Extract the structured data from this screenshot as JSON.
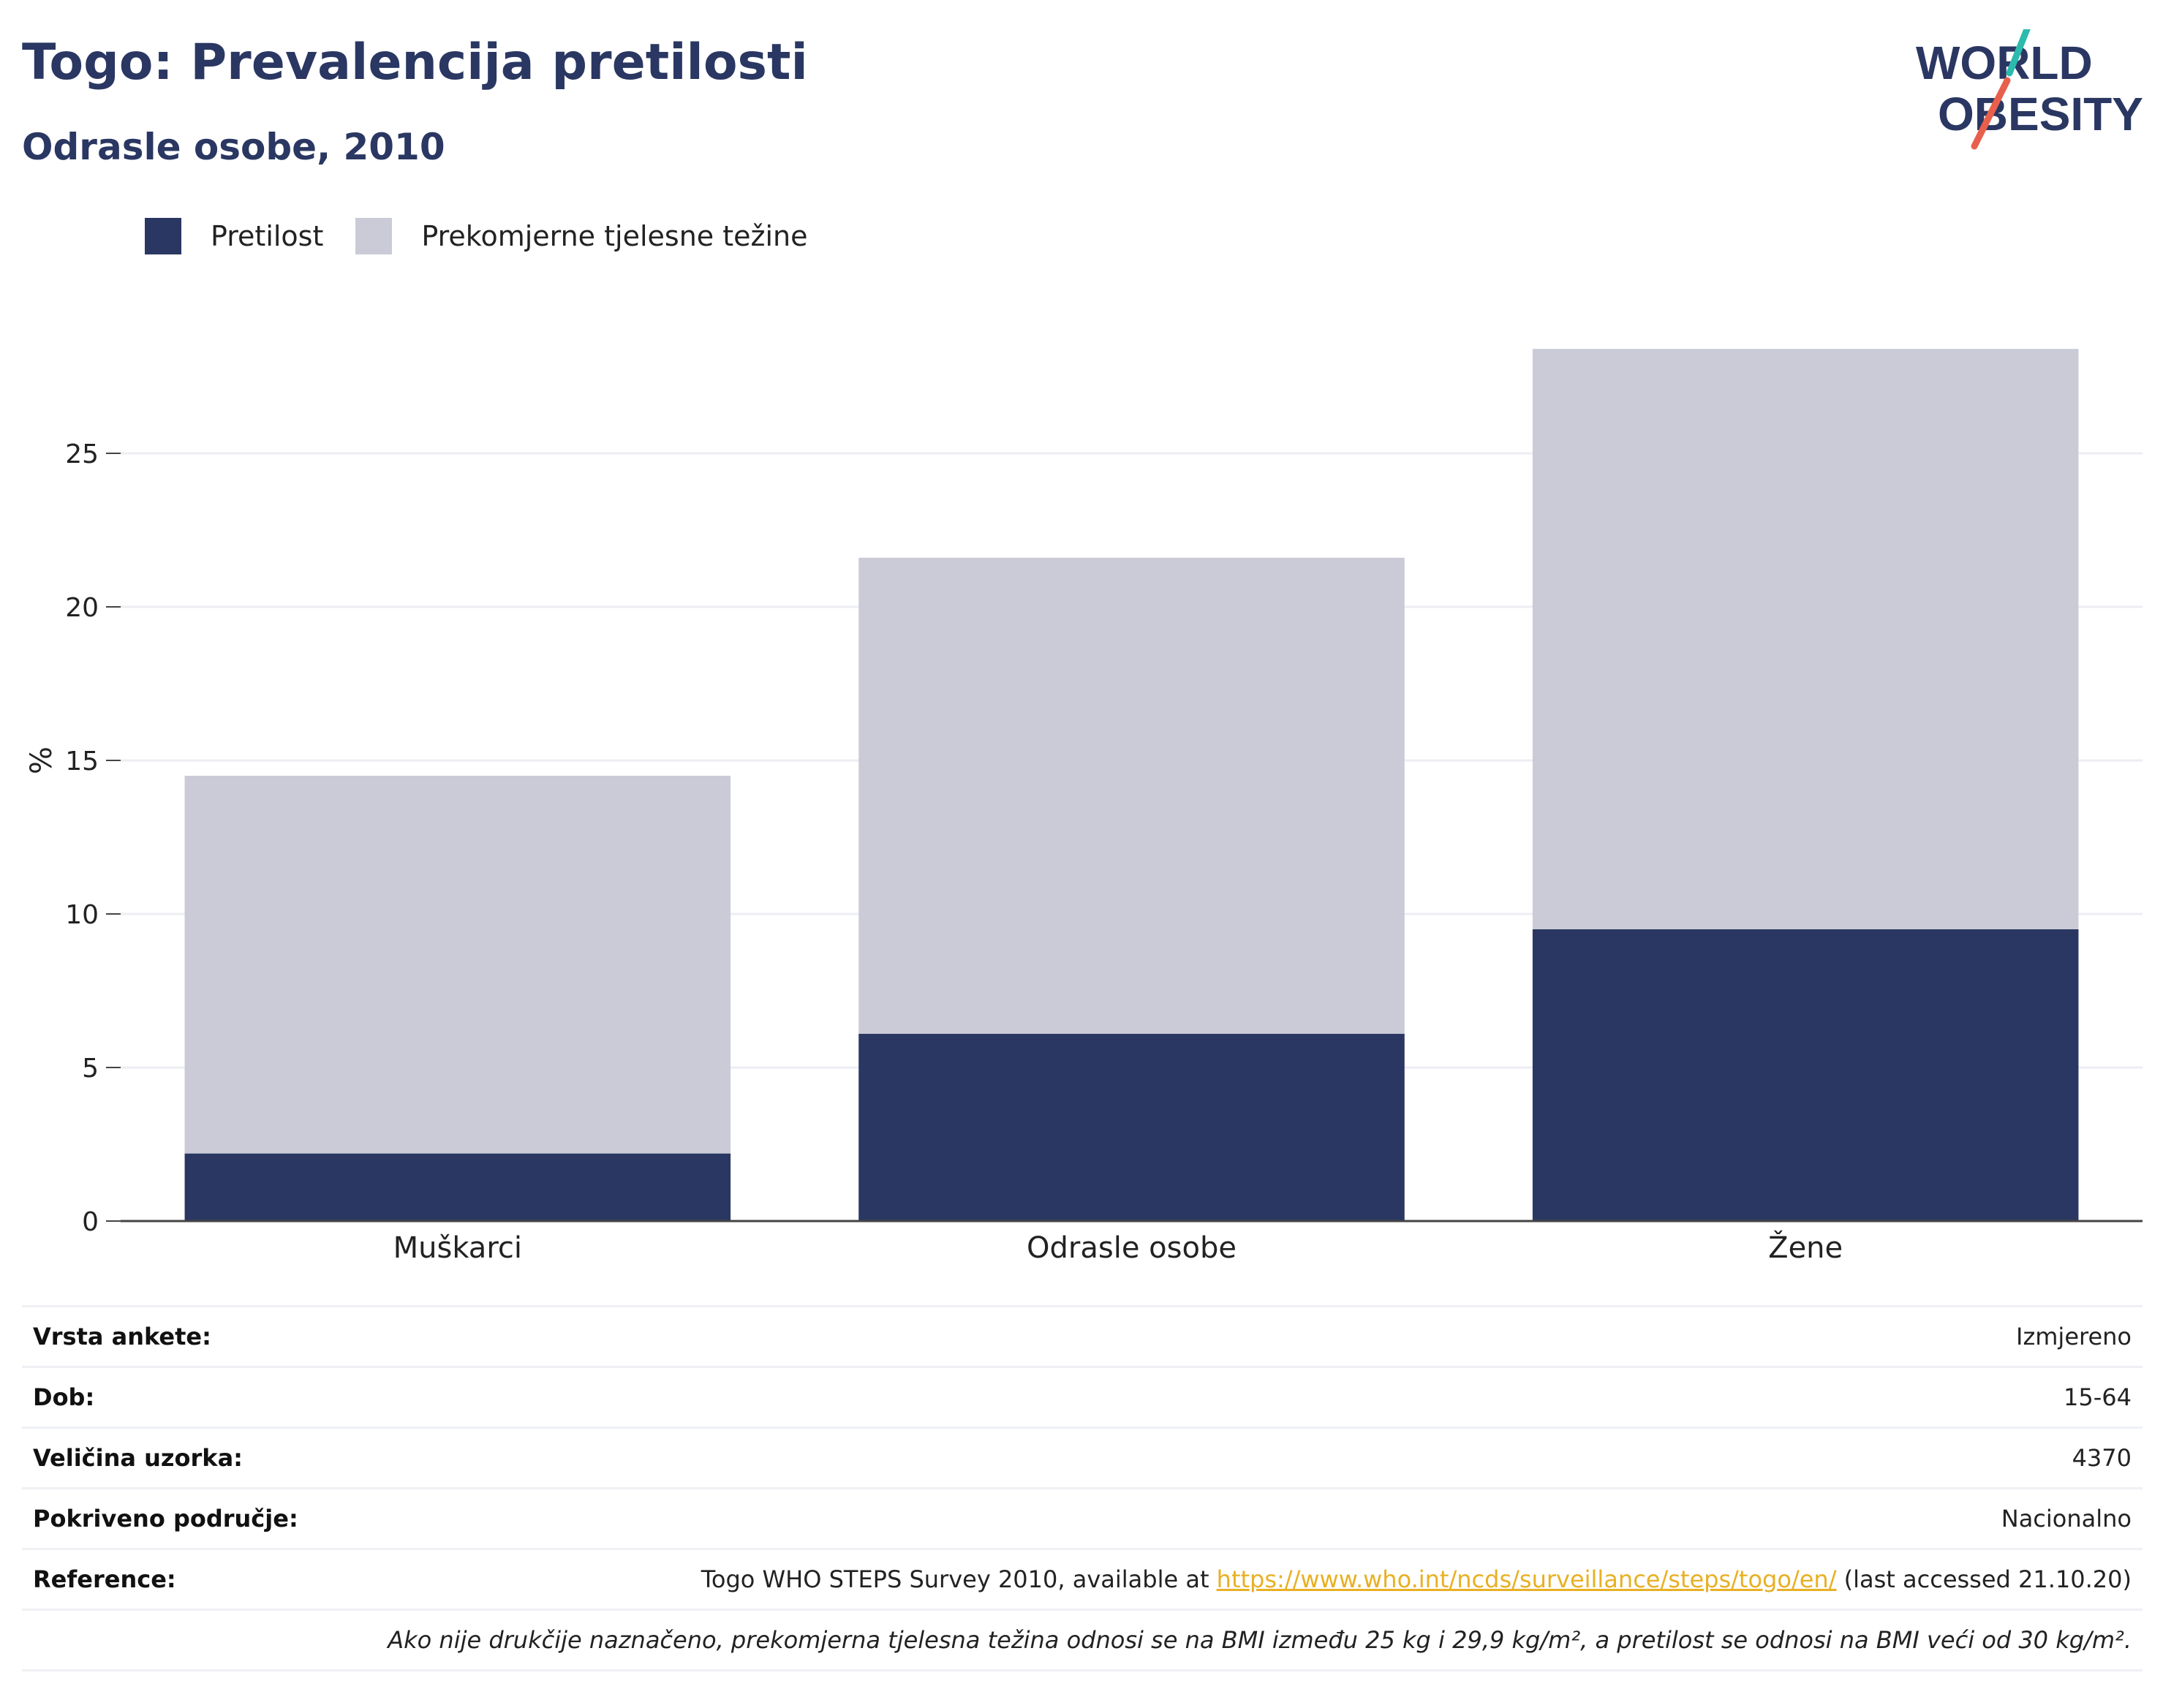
{
  "header": {
    "title": "Togo: Prevalencija pretilosti",
    "subtitle": "Odrasle osobe, 2010"
  },
  "logo": {
    "line1": "WORLD",
    "line2": "OBESITY",
    "accent1": "#2bbbad",
    "accent2": "#e8604c"
  },
  "legend": [
    {
      "label": "Pretilost",
      "color": "#2a3762"
    },
    {
      "label": "Prekomjerne tjelesne težine",
      "color": "#cacbd7"
    }
  ],
  "chart_data": {
    "type": "bar",
    "stacked": true,
    "categories": [
      "Muškarci",
      "Odrasle osobe",
      "Žene"
    ],
    "series": [
      {
        "name": "Pretilost",
        "values": [
          2.2,
          6.1,
          9.5
        ],
        "color": "#2a3762"
      },
      {
        "name": "Prekomjerne tjelesne težine",
        "values": [
          12.3,
          15.5,
          18.9
        ],
        "color": "#cacbd7"
      }
    ],
    "ylabel": "%",
    "ylim": [
      0,
      30
    ],
    "yticks": [
      0,
      5,
      10,
      15,
      20,
      25
    ],
    "grid": true,
    "legend_position": "top-left"
  },
  "info": {
    "rows": [
      {
        "label": "Vrsta ankete:",
        "value": "Izmjereno"
      },
      {
        "label": "Dob:",
        "value": "15-64"
      },
      {
        "label": "Veličina uzorka:",
        "value": "4370"
      },
      {
        "label": "Pokriveno područje:",
        "value": "Nacionalno"
      }
    ],
    "reference": {
      "label": "Reference:",
      "prefix": "Togo WHO STEPS Survey 2010, available at ",
      "link": "https://www.who.int/ncds/surveillance/steps/togo/en/",
      "suffix": " (last accessed 21.10.20)"
    },
    "note": "Ako nije drukčije naznačeno, prekomjerna tjelesna težina odnosi se na BMI između 25 kg i 29,9 kg/m², a pretilost se odnosi na BMI veći od 30 kg/m²."
  }
}
